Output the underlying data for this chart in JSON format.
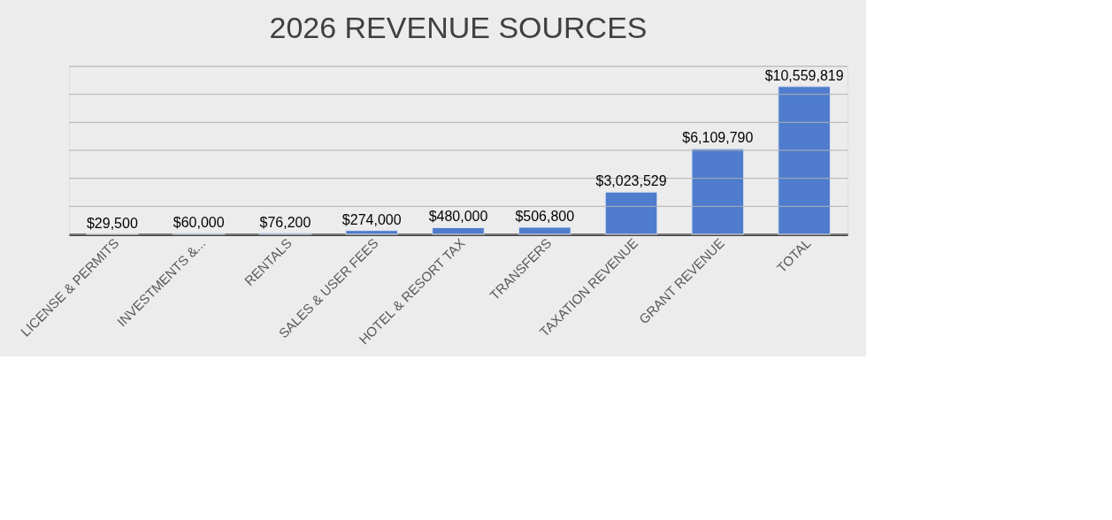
{
  "chart_data": {
    "type": "bar",
    "title": "2026 REVENUE SOURCES",
    "categories": [
      "LICENSE & PERMITS",
      "INVESTMENTS &...",
      "RENTALS",
      "SALES & USER FEES",
      "HOTEL & RESORT TAX",
      "TRANSFERS",
      "TAXATION REVENUE",
      "GRANT REVENUE",
      "TOTAL"
    ],
    "values": [
      29500,
      60000,
      76200,
      274000,
      480000,
      506800,
      3023529,
      6109790,
      10559819
    ],
    "value_labels": [
      "$29,500",
      "$60,000",
      "$76,200",
      "$274,000",
      "$480,000",
      "$506,800",
      "$3,023,529",
      "$6,109,790",
      "$10,559,819"
    ],
    "color": "#4f7ccc",
    "ylim": [
      0,
      12000000
    ],
    "yticks": [
      {
        "value": 0,
        "label": null
      },
      {
        "value": 2000000,
        "label": null
      },
      {
        "value": 4000000,
        "label": null
      },
      {
        "value": 6000000,
        "label": null
      },
      {
        "value": 8000000,
        "label": null
      },
      {
        "value": 10000000,
        "label": null
      },
      {
        "value": 12000000,
        "label": null
      }
    ],
    "grid": "y",
    "tick_labels": "x"
  }
}
